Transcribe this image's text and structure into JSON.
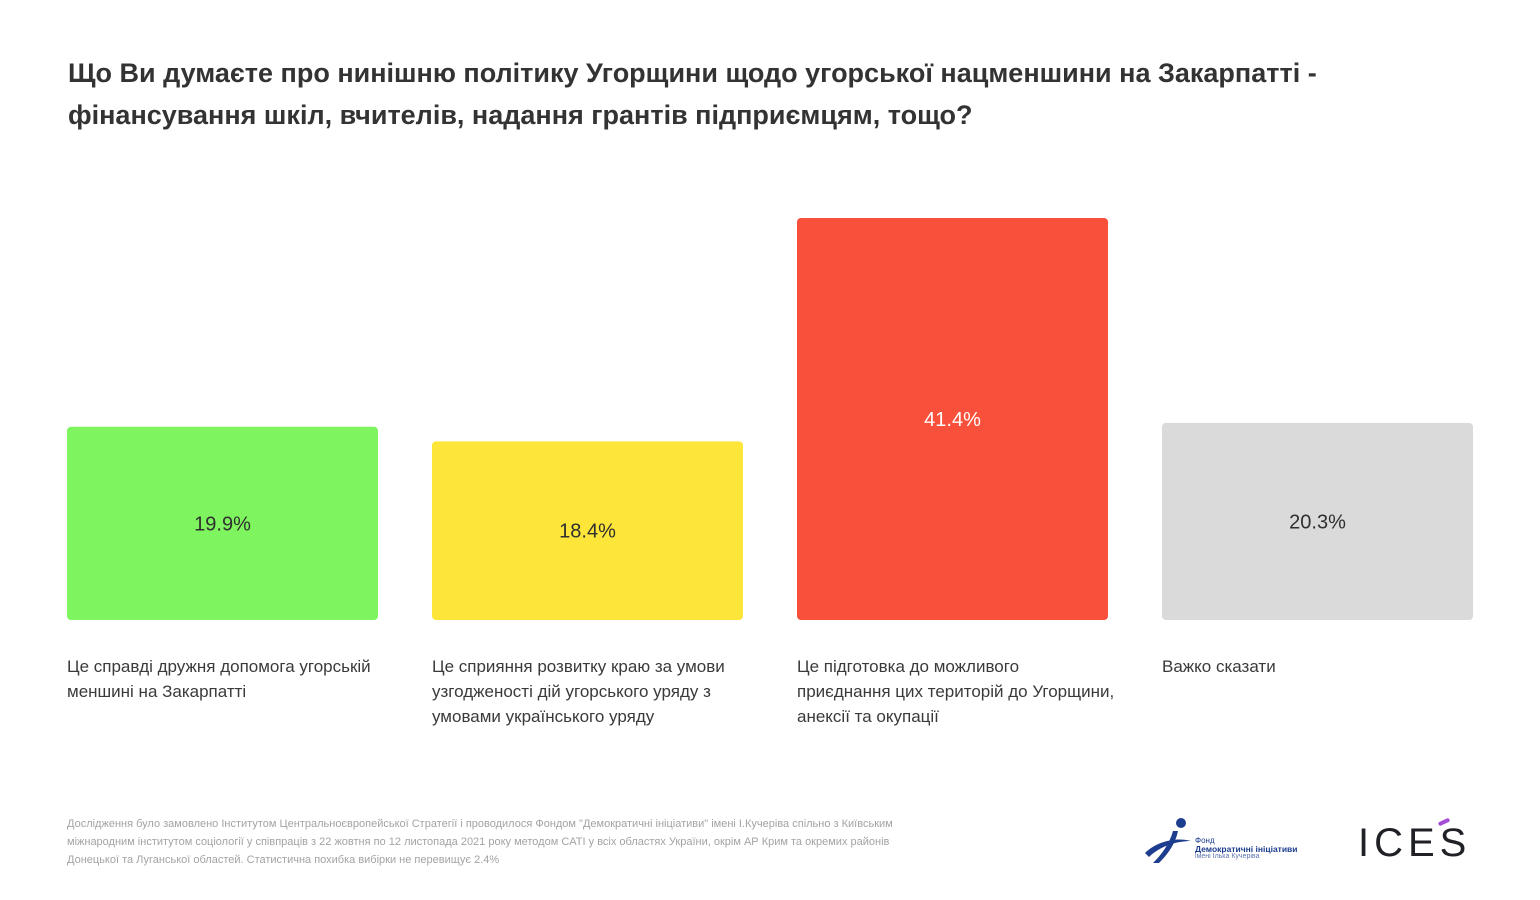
{
  "title": "Що Ви думаєте про нинішню політику Угорщини щодо угорської нацменшини на Закарпатті - фінансування шкіл, вчителів, надання грантів підприємцям, тощо?",
  "chart_data": {
    "type": "bar",
    "title": "Що Ви думаєте про нинішню політику Угорщини щодо угорської нацменшини на Закарпатті - фінансування шкіл, вчителів, надання грантів підприємцям, тощо?",
    "categories": [
      "Це справді дружня допомога угорській меншині на Закарпатті",
      "Це сприяння розвитку краю за умови узгодженості дій угорського уряду з умовами українського уряду",
      "Це підготовка до можливого приєднання цих територій до Угорщини, анексії та окупації",
      "Важко сказати"
    ],
    "values": [
      19.9,
      18.4,
      41.4,
      20.3
    ],
    "value_labels": [
      "19.9%",
      "18.4%",
      "41.4%",
      "20.3%"
    ],
    "colors": [
      "#7ef55e",
      "#fde53a",
      "#f9503b",
      "#dadada"
    ],
    "value_text_colors": [
      "#2f2f2f",
      "#2f2f2f",
      "#ffffff",
      "#2f2f2f"
    ],
    "ylim": [
      0,
      41.4
    ],
    "grid": false,
    "legend": "none"
  },
  "footnote": "Дослідження було замовлено Інститутом Центральноєвропейської Стратегії і проводилося Фондом \"Демократичні ініціативи\" імені І.Кучеріва спільно з Київським міжнародним інститутом соціології у співпраців з 22 жовтня по 12 листопада 2021 року методом CATI у всіх областях України, окрім АР Крим та окремих районів Донецької та Луганської областей. Статистична похибка вибірки не перевищує 2.4%",
  "logos": {
    "dem_line1": "Фонд",
    "dem_line2": "Демократичні ініціативи",
    "dem_line3": "імені Ілька Кучеріва",
    "dem_color": "#1d3d8f",
    "ices_text": "ICES",
    "ices_accent_color": "#a54bd6"
  }
}
